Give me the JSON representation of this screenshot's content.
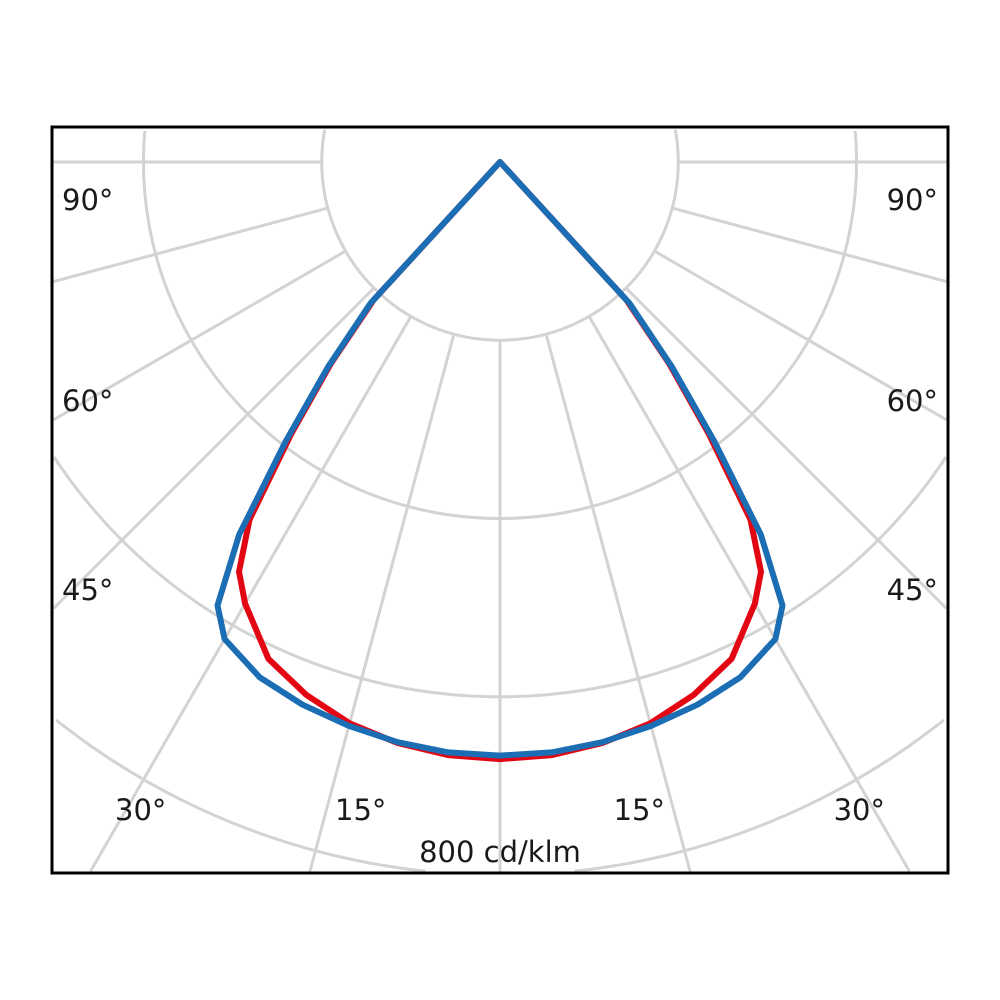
{
  "chart_data": {
    "type": "polar-line",
    "rlim": [
      0,
      800
    ],
    "r_rings": [
      200,
      400,
      600,
      800
    ],
    "r_label": "800 cd/klm",
    "theta_gridlines_deg": [
      0,
      15,
      30,
      45,
      60,
      75,
      90
    ],
    "angle_tick_labels": {
      "left": [
        "90°",
        "60°",
        "45°",
        "30°",
        "15°"
      ],
      "right": [
        "90°",
        "60°",
        "45°",
        "30°",
        "15°"
      ]
    },
    "grid": true,
    "angles_deg": [
      -90,
      -75,
      -60,
      -45,
      -42.5,
      -40,
      -37.5,
      -35,
      -32.5,
      -30,
      -25,
      -20,
      -15,
      -10,
      -5,
      0,
      5,
      10,
      15,
      20,
      25,
      30,
      32.5,
      35,
      37.5,
      40,
      42.5,
      45,
      60,
      75,
      90
    ],
    "series": [
      {
        "color": "#e30613",
        "values": [
          0,
          0,
          0,
          0,
          210,
          295,
          385,
          490,
          545,
          572,
          615,
          636,
          652,
          662,
          668,
          670,
          668,
          662,
          652,
          636,
          615,
          572,
          545,
          490,
          385,
          295,
          210,
          0,
          0,
          0,
          0
        ]
      },
      {
        "color": "#1b6db4",
        "values": [
          0,
          0,
          0,
          0,
          215,
          300,
          395,
          510,
          590,
          618,
          638,
          648,
          655,
          661,
          665,
          666,
          665,
          661,
          655,
          648,
          638,
          618,
          590,
          510,
          395,
          300,
          215,
          0,
          0,
          0,
          0
        ]
      }
    ],
    "colors": {
      "grid": "#d3d3d3",
      "frame": "#000000"
    }
  }
}
